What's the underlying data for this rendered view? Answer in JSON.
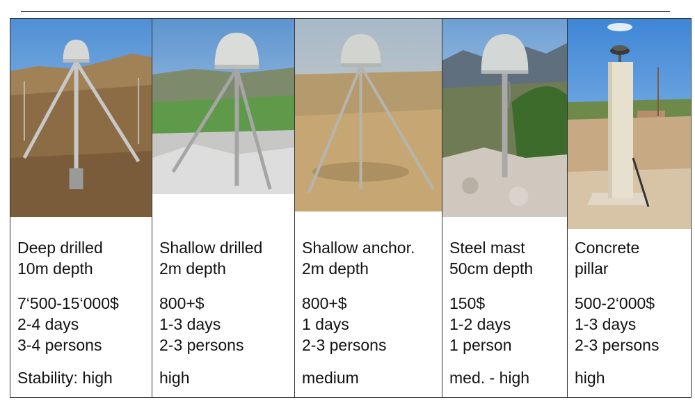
{
  "columns": [
    {
      "type_line1": "Deep drilled",
      "type_line2": "10m depth",
      "cost": "7‘500-15‘000$",
      "time": "2-4 days",
      "crew": "3-4 persons",
      "stability": "Stability: high"
    },
    {
      "type_line1": "Shallow drilled",
      "type_line2": "2m depth",
      "cost": "800+$",
      "time": "1-3 days",
      "crew": "2-3 persons",
      "stability": "high"
    },
    {
      "type_line1": "Shallow anchor.",
      "type_line2": "2m depth",
      "cost": "800+$",
      "time": "1 days",
      "crew": "2-3 persons",
      "stability": "medium"
    },
    {
      "type_line1": "Steel mast",
      "type_line2": "50cm depth",
      "cost": "150$",
      "time": "1-2 days",
      "crew": "1 person",
      "stability": "med. - high"
    },
    {
      "type_line1": "Concrete",
      "type_line2": "pillar",
      "cost": "500-2‘000$",
      "time": "1-3 days",
      "crew": "2-3 persons",
      "stability": "high"
    }
  ],
  "colors": {
    "border": "#333333",
    "sky": "#7fb2e0",
    "dome": "#d6d9d6",
    "ground": "#b89a6e"
  }
}
